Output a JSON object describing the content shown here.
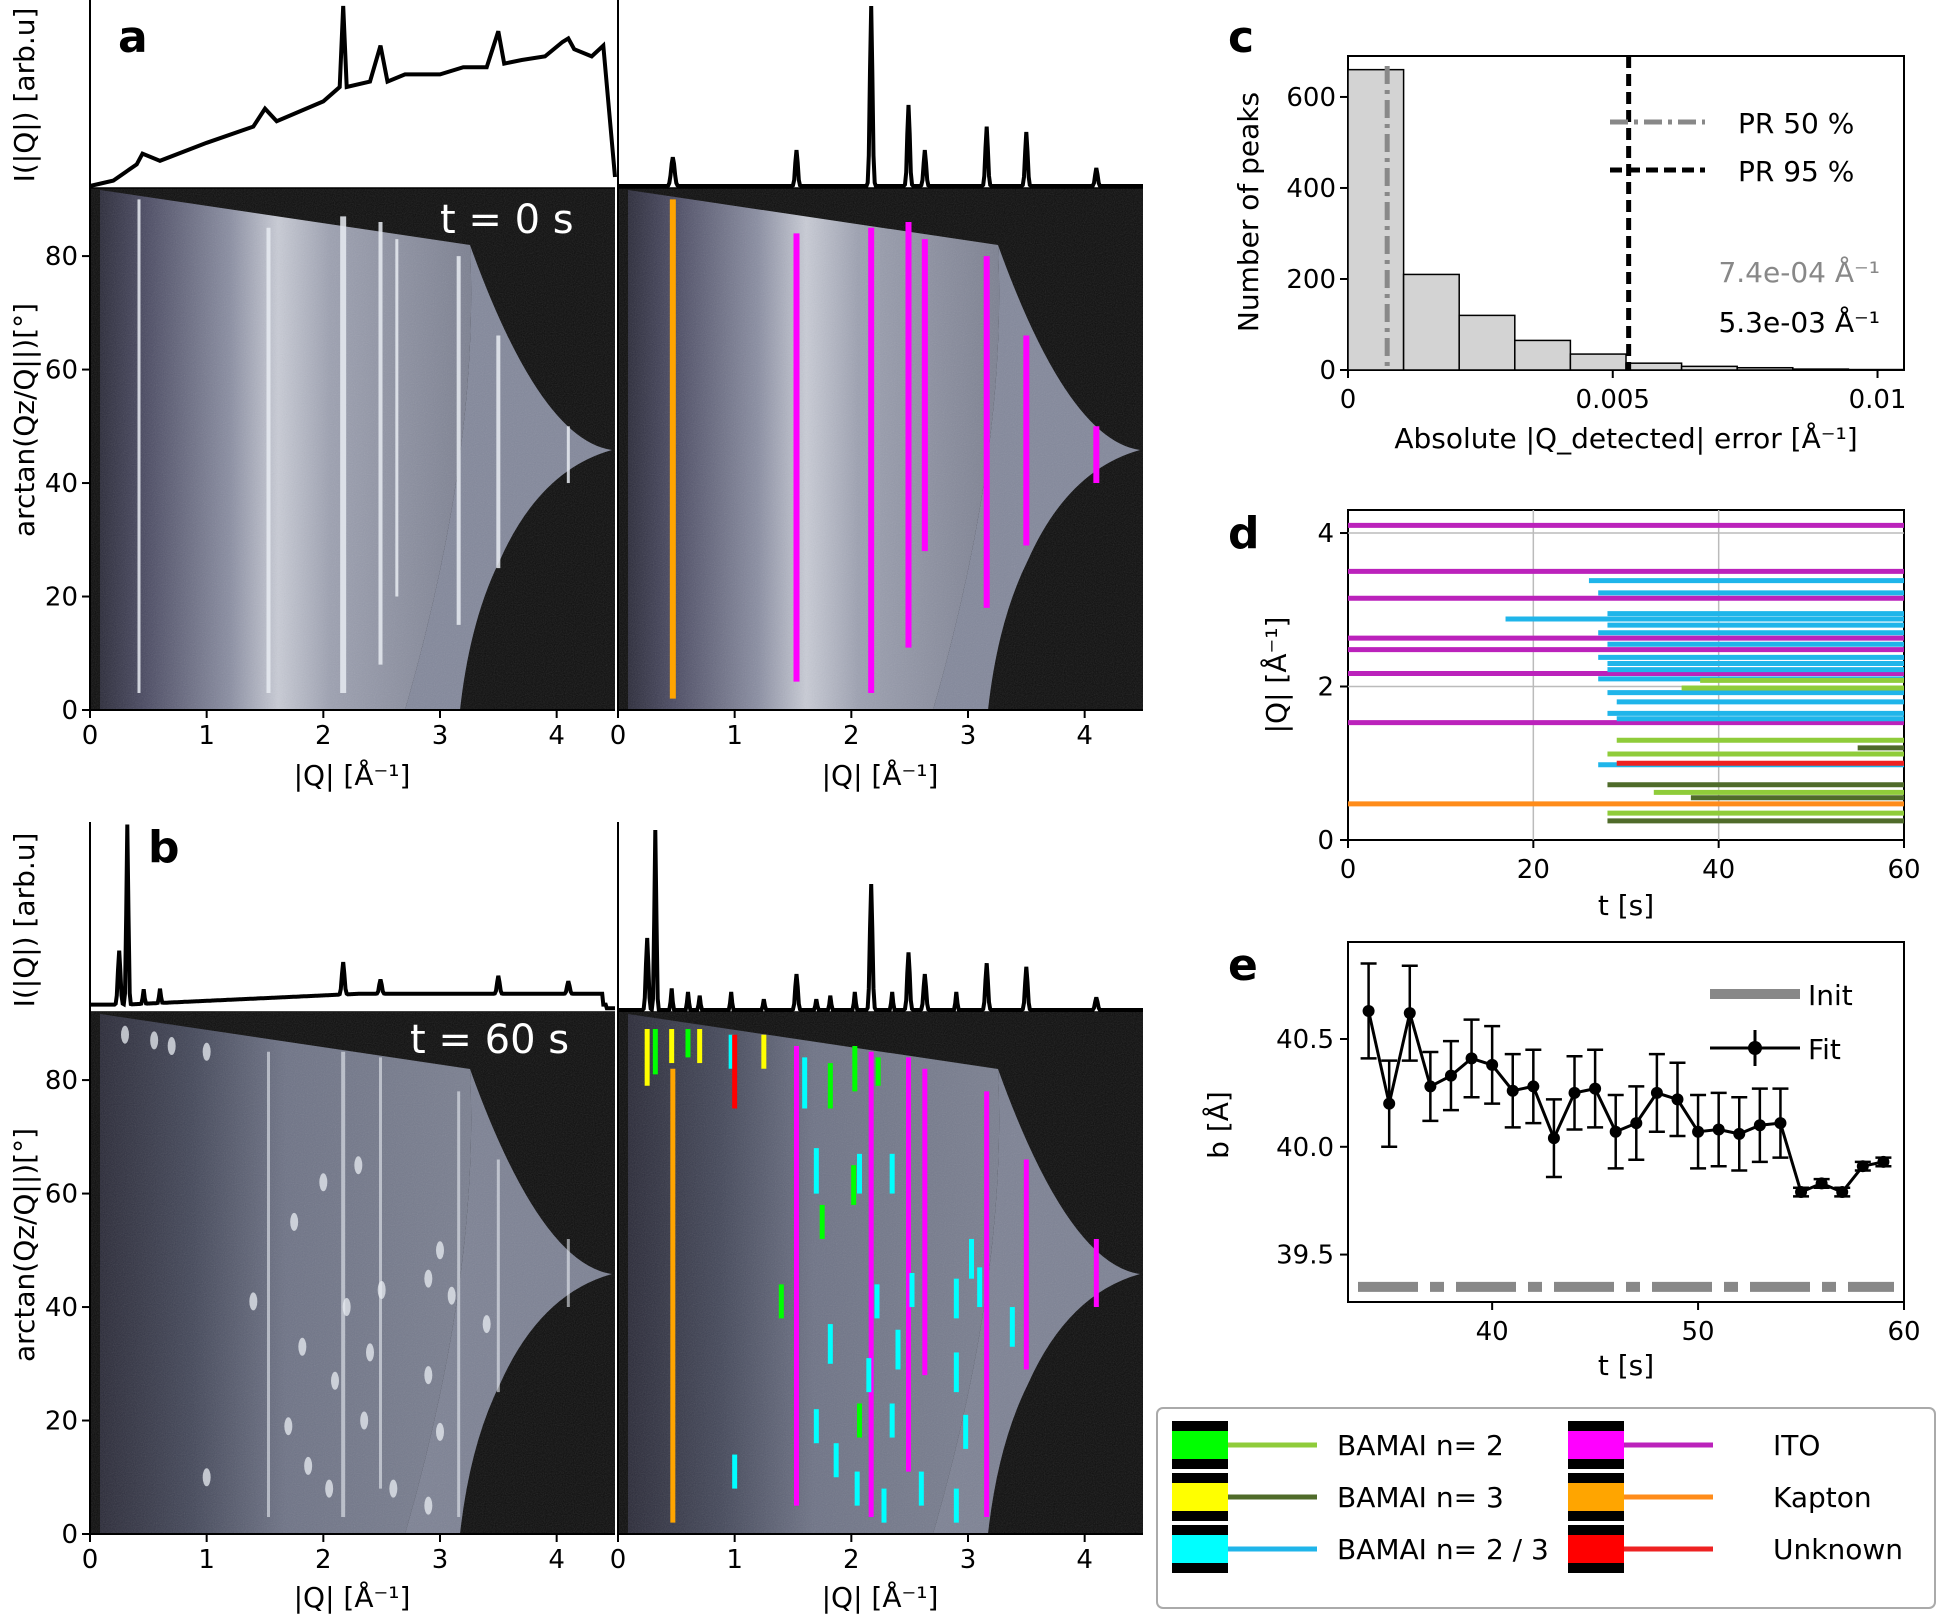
{
  "panels": {
    "a": {
      "letter": "a",
      "time_label": "t = 0 s",
      "ylabel_top": "I(|Q|) [arb.u]",
      "ylabel_map": "arctan(Qz/Q||)[°]",
      "xlabel_left": "|Q| [Å⁻¹]",
      "xlabel_right": "|Q| [Å⁻¹]",
      "x_ticks": [
        "0",
        "1",
        "2",
        "3",
        "4"
      ],
      "y_ticks": [
        "0",
        "20",
        "40",
        "60",
        "80"
      ],
      "detected_lines": [
        {
          "q": 0.47,
          "a0": 2,
          "a1": 90,
          "color": "#ffa500"
        },
        {
          "q": 1.53,
          "a0": 5,
          "a1": 84,
          "color": "#ff00ff"
        },
        {
          "q": 2.17,
          "a0": 3,
          "a1": 85,
          "color": "#ff00ff"
        },
        {
          "q": 2.49,
          "a0": 11,
          "a1": 86,
          "color": "#ff00ff"
        },
        {
          "q": 2.63,
          "a0": 28,
          "a1": 83,
          "color": "#ff00ff"
        },
        {
          "q": 3.16,
          "a0": 18,
          "a1": 80,
          "color": "#ff00ff"
        },
        {
          "q": 3.5,
          "a0": 29,
          "a1": 66,
          "color": "#ff00ff"
        },
        {
          "q": 4.1,
          "a0": 40,
          "a1": 50,
          "color": "#ff00ff"
        }
      ]
    },
    "b": {
      "letter": "b",
      "time_label": "t = 60 s",
      "ylabel_top": "I(|Q|) [arb.u]",
      "ylabel_map": "arctan(Qz/Q||)[°]",
      "xlabel_left": "|Q| [Å⁻¹]",
      "xlabel_right": "|Q| [Å⁻¹]",
      "x_ticks": [
        "0",
        "1",
        "2",
        "3",
        "4"
      ],
      "y_ticks": [
        "0",
        "20",
        "40",
        "60",
        "80"
      ],
      "detected_lines": [
        {
          "q": 0.47,
          "a0": 2,
          "a1": 82,
          "color": "#ffa500"
        },
        {
          "q": 1.53,
          "a0": 5,
          "a1": 86,
          "color": "#ff00ff"
        },
        {
          "q": 2.17,
          "a0": 3,
          "a1": 85,
          "color": "#ff00ff"
        },
        {
          "q": 2.49,
          "a0": 11,
          "a1": 84,
          "color": "#ff00ff"
        },
        {
          "q": 2.63,
          "a0": 28,
          "a1": 82,
          "color": "#ff00ff"
        },
        {
          "q": 3.16,
          "a0": 3,
          "a1": 78,
          "color": "#ff00ff"
        },
        {
          "q": 3.5,
          "a0": 29,
          "a1": 66,
          "color": "#ff00ff"
        },
        {
          "q": 4.1,
          "a0": 40,
          "a1": 52,
          "color": "#ff00ff"
        },
        {
          "q": 0.25,
          "a0": 79,
          "a1": 89,
          "color": "#ffff00"
        },
        {
          "q": 0.32,
          "a0": 81,
          "a1": 89,
          "color": "#00ff00"
        },
        {
          "q": 0.46,
          "a0": 83,
          "a1": 89,
          "color": "#ffff00"
        },
        {
          "q": 0.6,
          "a0": 84,
          "a1": 89,
          "color": "#00ff00"
        },
        {
          "q": 0.7,
          "a0": 83,
          "a1": 89,
          "color": "#ffff00"
        },
        {
          "q": 0.97,
          "a0": 82,
          "a1": 88,
          "color": "#00ffff"
        },
        {
          "q": 1.0,
          "a0": 75,
          "a1": 88,
          "color": "#ff0000"
        },
        {
          "q": 1.25,
          "a0": 82,
          "a1": 88,
          "color": "#ffff00"
        },
        {
          "q": 1.6,
          "a0": 75,
          "a1": 84,
          "color": "#00ffff"
        },
        {
          "q": 1.82,
          "a0": 75,
          "a1": 83,
          "color": "#00ff00"
        },
        {
          "q": 2.03,
          "a0": 78,
          "a1": 86,
          "color": "#00ff00"
        },
        {
          "q": 2.23,
          "a0": 79,
          "a1": 84,
          "color": "#00ff00"
        },
        {
          "q": 1.7,
          "a0": 60,
          "a1": 68,
          "color": "#00ffff"
        },
        {
          "q": 2.02,
          "a0": 58,
          "a1": 65,
          "color": "#00ff00"
        },
        {
          "q": 2.07,
          "a0": 60,
          "a1": 67,
          "color": "#00ffff"
        },
        {
          "q": 2.35,
          "a0": 60,
          "a1": 67,
          "color": "#00ffff"
        },
        {
          "q": 1.75,
          "a0": 52,
          "a1": 58,
          "color": "#00ff00"
        },
        {
          "q": 2.9,
          "a0": 38,
          "a1": 45,
          "color": "#00ffff"
        },
        {
          "q": 3.03,
          "a0": 45,
          "a1": 52,
          "color": "#00ffff"
        },
        {
          "q": 3.1,
          "a0": 40,
          "a1": 47,
          "color": "#00ffff"
        },
        {
          "q": 1.4,
          "a0": 38,
          "a1": 44,
          "color": "#00ff00"
        },
        {
          "q": 2.22,
          "a0": 38,
          "a1": 44,
          "color": "#00ffff"
        },
        {
          "q": 2.52,
          "a0": 40,
          "a1": 46,
          "color": "#00ffff"
        },
        {
          "q": 3.38,
          "a0": 33,
          "a1": 40,
          "color": "#00ffff"
        },
        {
          "q": 1.82,
          "a0": 30,
          "a1": 37,
          "color": "#00ffff"
        },
        {
          "q": 2.4,
          "a0": 29,
          "a1": 36,
          "color": "#00ffff"
        },
        {
          "q": 2.9,
          "a0": 25,
          "a1": 32,
          "color": "#00ffff"
        },
        {
          "q": 2.15,
          "a0": 25,
          "a1": 31,
          "color": "#00ffff"
        },
        {
          "q": 2.98,
          "a0": 15,
          "a1": 21,
          "color": "#00ffff"
        },
        {
          "q": 1.7,
          "a0": 16,
          "a1": 22,
          "color": "#00ffff"
        },
        {
          "q": 2.35,
          "a0": 17,
          "a1": 23,
          "color": "#00ffff"
        },
        {
          "q": 2.07,
          "a0": 17,
          "a1": 23,
          "color": "#00ff00"
        },
        {
          "q": 1.87,
          "a0": 10,
          "a1": 16,
          "color": "#00ffff"
        },
        {
          "q": 1.0,
          "a0": 8,
          "a1": 14,
          "color": "#00ffff"
        },
        {
          "q": 2.05,
          "a0": 5,
          "a1": 11,
          "color": "#00ffff"
        },
        {
          "q": 2.6,
          "a0": 5,
          "a1": 11,
          "color": "#00ffff"
        },
        {
          "q": 2.9,
          "a0": 2,
          "a1": 8,
          "color": "#00ffff"
        },
        {
          "q": 2.28,
          "a0": 2,
          "a1": 8,
          "color": "#00ffff"
        }
      ]
    },
    "c": {
      "letter": "c",
      "xlabel": "Absolute |Q_detected| error [Å⁻¹]",
      "ylabel": "Number of peaks",
      "x_ticks": [
        "0",
        "0.005",
        "0.01"
      ],
      "y_ticks": [
        "0",
        "200",
        "400",
        "600"
      ],
      "legend": [
        "PR 50 %",
        "PR 95 %"
      ],
      "annotation_1": "7.4e-04 Å⁻¹",
      "annotation_2": "5.3e-03 Å⁻¹"
    },
    "d": {
      "letter": "d",
      "xlabel": "t [s]",
      "ylabel": "|Q| [Å⁻¹]",
      "x_ticks": [
        "0",
        "20",
        "40",
        "60"
      ],
      "y_ticks": [
        "0",
        "2",
        "4"
      ]
    },
    "e": {
      "letter": "e",
      "xlabel": "t [s]",
      "ylabel": "b [Å]",
      "x_ticks": [
        "40",
        "50",
        "60"
      ],
      "y_ticks": [
        "39.5",
        "40.0",
        "40.5"
      ],
      "legend": [
        "Init",
        "Fit"
      ]
    }
  },
  "legend": {
    "items": [
      {
        "label": "BAMAI n= 2",
        "swatch": "#00ff00",
        "line": "#8fcc3a"
      },
      {
        "label": "BAMAI n= 3",
        "swatch": "#ffff00",
        "line": "#4f6b2a"
      },
      {
        "label": "BAMAI n= 2 / 3",
        "swatch": "#00ffff",
        "line": "#1fb5ea"
      },
      {
        "label": "ITO",
        "swatch": "#ff00ff",
        "line": "#bb22bb"
      },
      {
        "label": "Kapton",
        "swatch": "#ffa500",
        "line": "#ff8c1a"
      },
      {
        "label": "Unknown",
        "swatch": "#ff0000",
        "line": "#ee2222"
      }
    ]
  },
  "chart_data": [
    {
      "type": "line",
      "title": "",
      "panel": "a",
      "xlabel": "|Q| [Å⁻¹]",
      "ylabel": "I(|Q|) [arb.u]",
      "xlim": [
        0,
        4.5
      ],
      "series": [
        {
          "values_left": "measured profile t = 0 s",
          "x": [
            0,
            0.2,
            0.4,
            0.45,
            0.6,
            1.0,
            1.4,
            1.5,
            1.6,
            2.0,
            2.14,
            2.17,
            2.2,
            2.4,
            2.49,
            2.55,
            2.7,
            3.0,
            3.2,
            3.4,
            3.5,
            3.55,
            3.7,
            3.9,
            4.05,
            4.1,
            4.15,
            4.3,
            4.4,
            4.5
          ],
          "y": [
            0,
            0.03,
            0.12,
            0.18,
            0.14,
            0.24,
            0.33,
            0.43,
            0.36,
            0.47,
            0.55,
            1.0,
            0.55,
            0.58,
            0.78,
            0.58,
            0.62,
            0.62,
            0.66,
            0.66,
            0.86,
            0.68,
            0.7,
            0.72,
            0.8,
            0.82,
            0.76,
            0.72,
            0.78,
            0.05
          ]
        }
      ]
    },
    {
      "type": "bar",
      "panel": "c",
      "xlabel": "Absolute |Q_detected| error [Å⁻¹]",
      "ylabel": "Number of peaks",
      "bin_edges": [
        0,
        0.00105,
        0.0021,
        0.00315,
        0.0042,
        0.00525,
        0.0063,
        0.00735,
        0.0084,
        0.00945,
        0.0105
      ],
      "values": [
        660,
        210,
        120,
        65,
        35,
        15,
        8,
        5,
        2,
        1
      ],
      "xlim": [
        0,
        0.0105
      ],
      "ylim": [
        0,
        690
      ],
      "vlines": [
        {
          "x": 0.00074,
          "label": "PR 50 %"
        },
        {
          "x": 0.0053,
          "label": "PR 95 %"
        }
      ]
    },
    {
      "type": "line",
      "panel": "d",
      "xlabel": "t [s]",
      "ylabel": "|Q| [Å⁻¹]",
      "xlim": [
        0,
        60
      ],
      "ylim": [
        0,
        4.3
      ],
      "tracks": [
        {
          "t0": 0,
          "t1": 60,
          "q": 4.1,
          "color": "#bb22bb"
        },
        {
          "t0": 0,
          "t1": 60,
          "q": 3.5,
          "color": "#bb22bb"
        },
        {
          "t0": 0,
          "t1": 60,
          "q": 3.15,
          "color": "#bb22bb"
        },
        {
          "t0": 0,
          "t1": 60,
          "q": 2.63,
          "color": "#bb22bb"
        },
        {
          "t0": 0,
          "t1": 60,
          "q": 2.48,
          "color": "#bb22bb"
        },
        {
          "t0": 0,
          "t1": 60,
          "q": 2.17,
          "color": "#bb22bb"
        },
        {
          "t0": 0,
          "t1": 60,
          "q": 1.53,
          "color": "#bb22bb"
        },
        {
          "t0": 0,
          "t1": 60,
          "q": 0.47,
          "color": "#ff8c1a"
        },
        {
          "t0": 26,
          "t1": 60,
          "q": 3.38,
          "color": "#1fb5ea"
        },
        {
          "t0": 27,
          "t1": 60,
          "q": 3.22,
          "color": "#1fb5ea"
        },
        {
          "t0": 17,
          "t1": 60,
          "q": 2.88,
          "color": "#1fb5ea"
        },
        {
          "t0": 28,
          "t1": 60,
          "q": 2.95,
          "color": "#1fb5ea"
        },
        {
          "t0": 28,
          "t1": 60,
          "q": 2.8,
          "color": "#1fb5ea"
        },
        {
          "t0": 27,
          "t1": 60,
          "q": 2.7,
          "color": "#1fb5ea"
        },
        {
          "t0": 28,
          "t1": 60,
          "q": 2.55,
          "color": "#1fb5ea"
        },
        {
          "t0": 27,
          "t1": 60,
          "q": 2.38,
          "color": "#1fb5ea"
        },
        {
          "t0": 28,
          "t1": 60,
          "q": 2.3,
          "color": "#1fb5ea"
        },
        {
          "t0": 28,
          "t1": 60,
          "q": 2.22,
          "color": "#1fb5ea"
        },
        {
          "t0": 27,
          "t1": 60,
          "q": 2.1,
          "color": "#1fb5ea"
        },
        {
          "t0": 28,
          "t1": 60,
          "q": 1.92,
          "color": "#1fb5ea"
        },
        {
          "t0": 29,
          "t1": 60,
          "q": 1.8,
          "color": "#1fb5ea"
        },
        {
          "t0": 28,
          "t1": 60,
          "q": 1.65,
          "color": "#1fb5ea"
        },
        {
          "t0": 29,
          "t1": 60,
          "q": 1.58,
          "color": "#1fb5ea"
        },
        {
          "t0": 27,
          "t1": 60,
          "q": 0.98,
          "color": "#1fb5ea"
        },
        {
          "t0": 38,
          "t1": 60,
          "q": 2.08,
          "color": "#8fcc3a"
        },
        {
          "t0": 36,
          "t1": 60,
          "q": 1.98,
          "color": "#8fcc3a"
        },
        {
          "t0": 29,
          "t1": 60,
          "q": 1.3,
          "color": "#8fcc3a"
        },
        {
          "t0": 28,
          "t1": 60,
          "q": 1.12,
          "color": "#8fcc3a"
        },
        {
          "t0": 33,
          "t1": 60,
          "q": 0.62,
          "color": "#8fcc3a"
        },
        {
          "t0": 28,
          "t1": 60,
          "q": 0.35,
          "color": "#8fcc3a"
        },
        {
          "t0": 55,
          "t1": 60,
          "q": 1.2,
          "color": "#4f6b2a"
        },
        {
          "t0": 28,
          "t1": 60,
          "q": 0.72,
          "color": "#4f6b2a"
        },
        {
          "t0": 37,
          "t1": 60,
          "q": 0.55,
          "color": "#4f6b2a"
        },
        {
          "t0": 28,
          "t1": 60,
          "q": 0.25,
          "color": "#4f6b2a"
        },
        {
          "t0": 29,
          "t1": 60,
          "q": 1.0,
          "color": "#ee2222"
        }
      ]
    },
    {
      "type": "scatter",
      "panel": "e",
      "xlabel": "t [s]",
      "ylabel": "b [Å]",
      "xlim": [
        33,
        60
      ],
      "ylim": [
        39.28,
        40.95
      ],
      "init_value": 39.35,
      "x": [
        34,
        35,
        36,
        37,
        38,
        39,
        40,
        41,
        42,
        43,
        44,
        45,
        46,
        47,
        48,
        49,
        50,
        51,
        52,
        53,
        54,
        55,
        56,
        57,
        58,
        59
      ],
      "y": [
        40.63,
        40.2,
        40.62,
        40.28,
        40.33,
        40.41,
        40.38,
        40.26,
        40.28,
        40.04,
        40.25,
        40.27,
        40.07,
        40.11,
        40.25,
        40.22,
        40.07,
        40.08,
        40.06,
        40.1,
        40.11,
        39.79,
        39.83,
        39.79,
        39.91,
        39.93
      ],
      "err": [
        0.22,
        0.2,
        0.22,
        0.16,
        0.16,
        0.18,
        0.18,
        0.17,
        0.17,
        0.18,
        0.17,
        0.18,
        0.17,
        0.17,
        0.18,
        0.17,
        0.17,
        0.17,
        0.17,
        0.17,
        0.16,
        0.02,
        0.02,
        0.02,
        0.02,
        0.02
      ]
    }
  ]
}
